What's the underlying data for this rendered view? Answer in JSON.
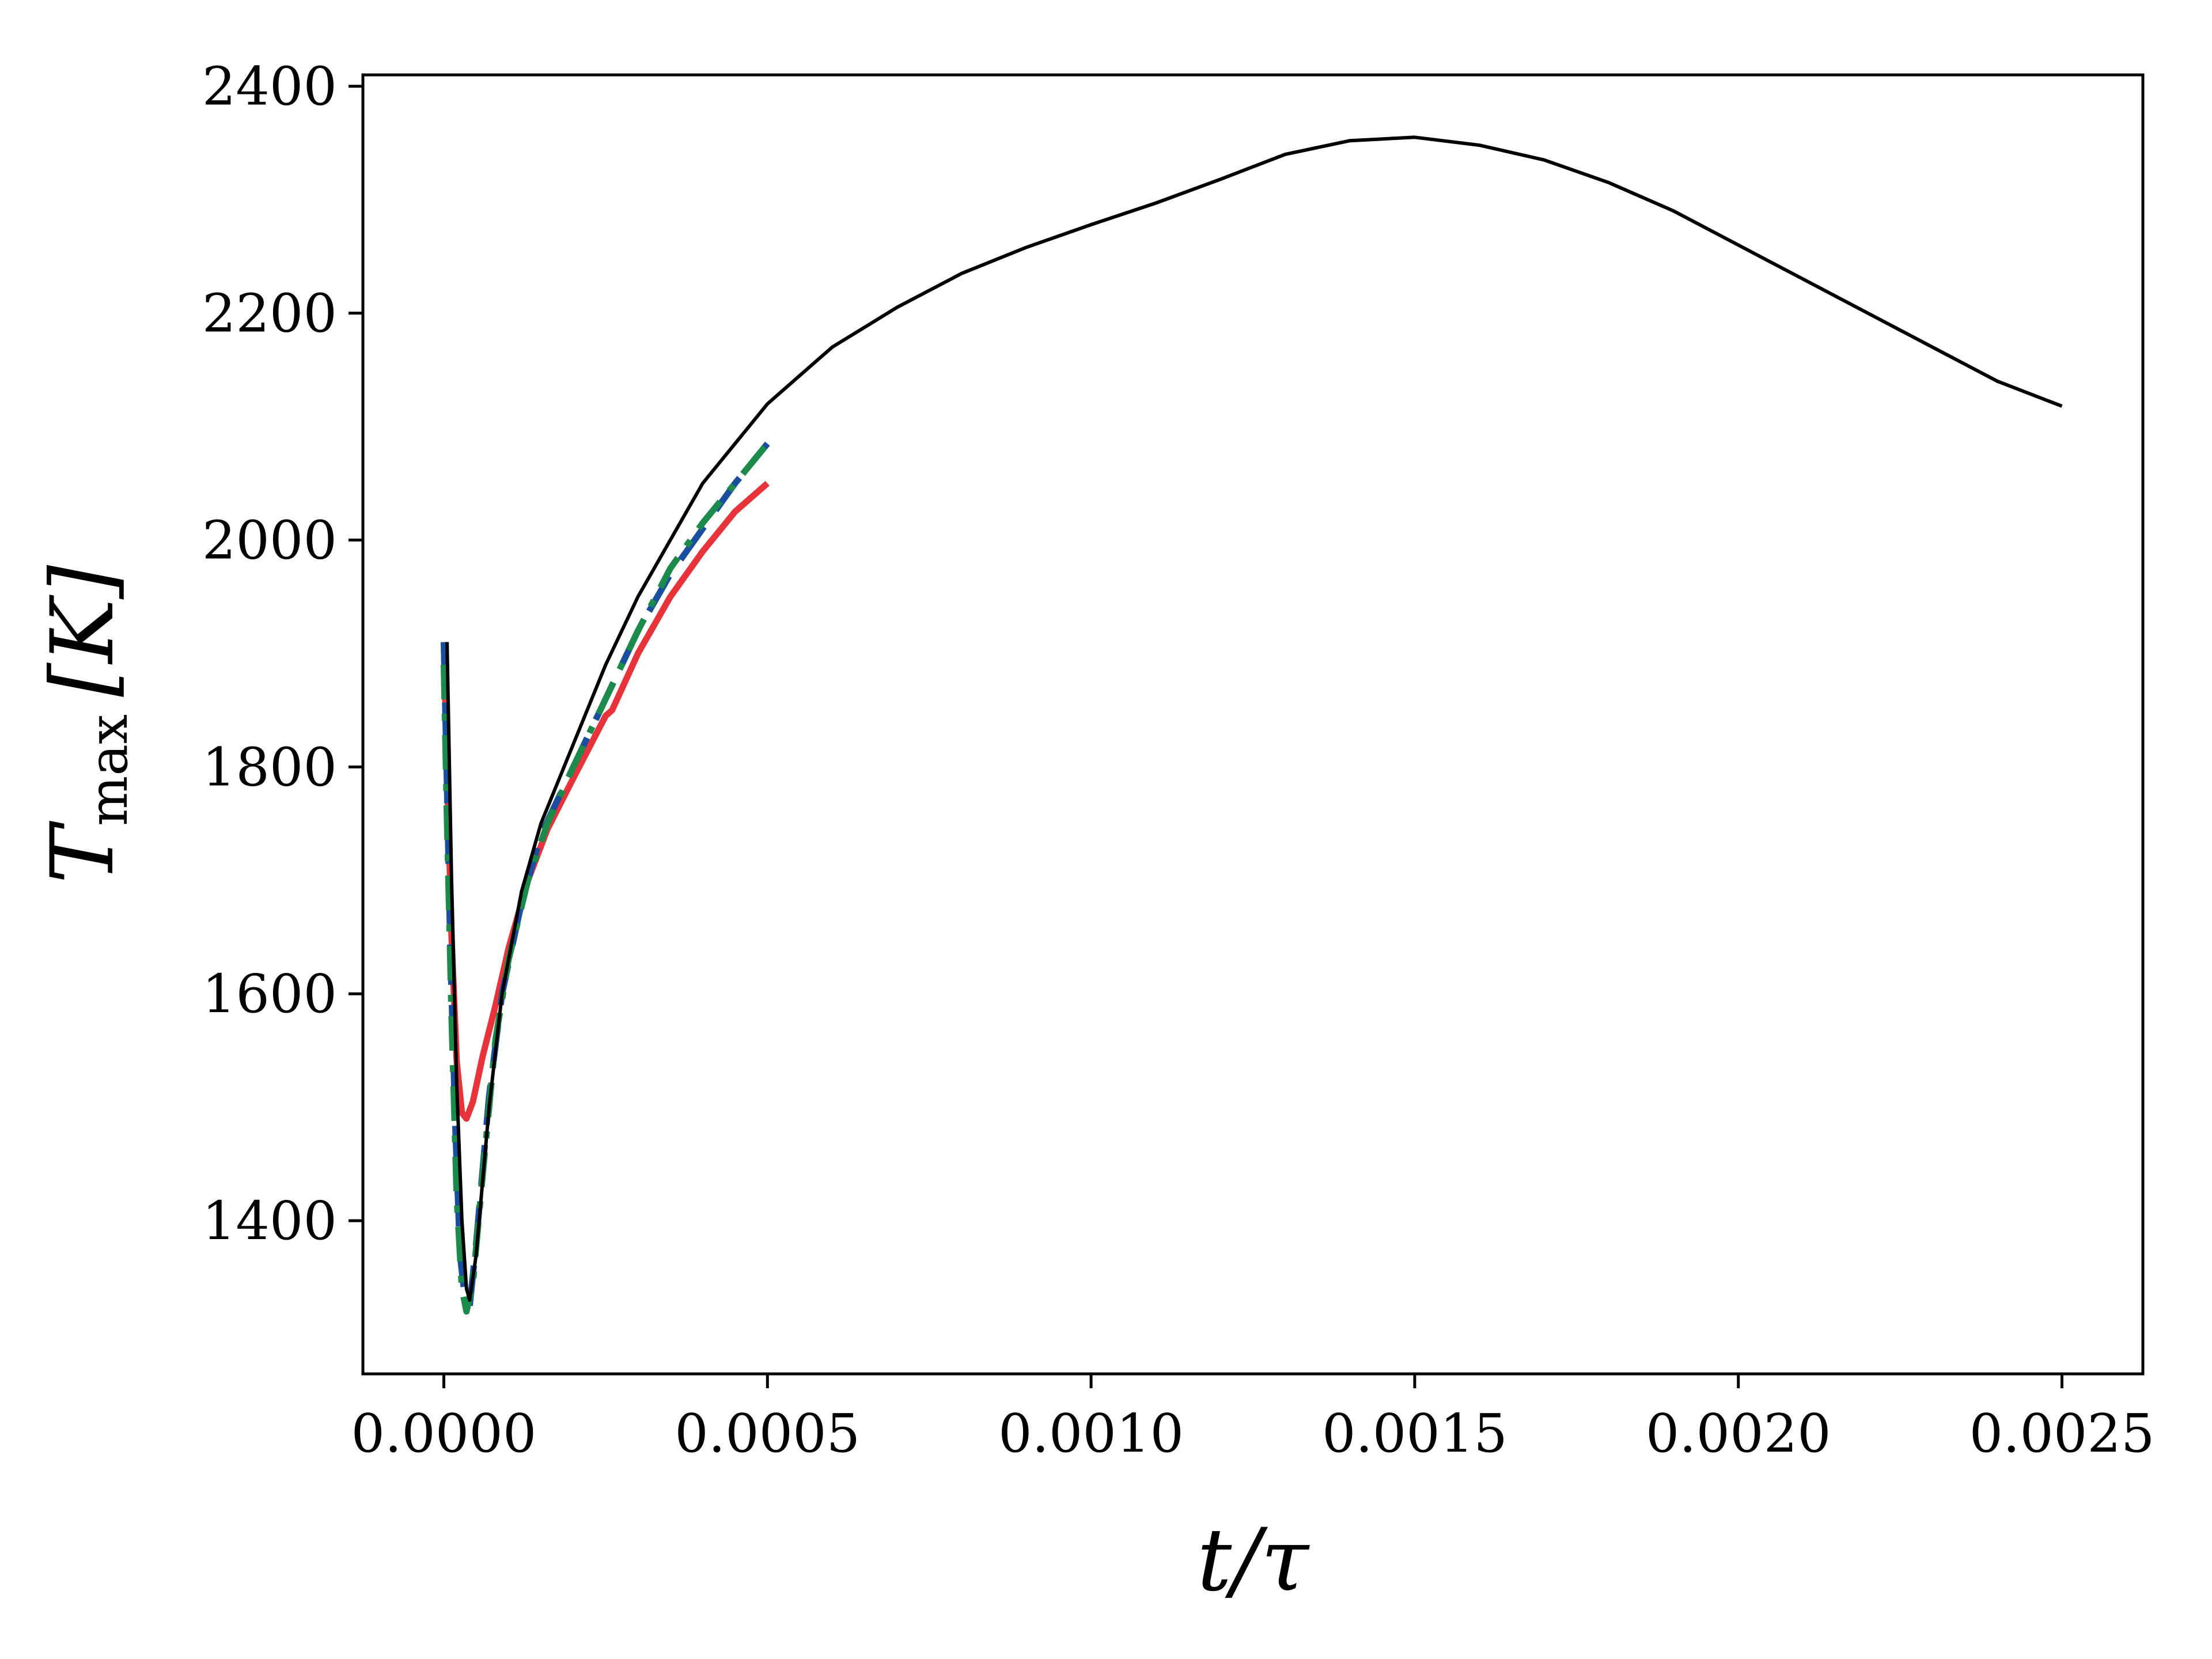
{
  "chart_data": {
    "type": "line",
    "xlabel": "t/τ",
    "ylabel": {
      "main": "T",
      "sub": "max",
      "unit": "[K]"
    },
    "xlim": [
      -0.000125,
      0.002625
    ],
    "ylim": [
      1265,
      2410
    ],
    "x_ticks": [
      0.0,
      0.0005,
      0.001,
      0.0015,
      0.002,
      0.0025
    ],
    "x_tick_labels": [
      "0.0000",
      "0.0005",
      "0.0010",
      "0.0015",
      "0.0020",
      "0.0025"
    ],
    "y_ticks": [
      1400,
      1600,
      1800,
      2000,
      2200,
      2400
    ],
    "y_tick_labels": [
      "1400",
      "1600",
      "1800",
      "2000",
      "2200",
      "2400"
    ],
    "grid": false,
    "series": [
      {
        "color": "#e8333a",
        "style": "solid",
        "points": [
          [
            0.0,
            1910
          ],
          [
            5e-06,
            1800
          ],
          [
            1.2e-05,
            1650
          ],
          [
            2e-05,
            1540
          ],
          [
            2.8e-05,
            1495
          ],
          [
            3.5e-05,
            1490
          ],
          [
            4.5e-05,
            1505
          ],
          [
            6e-05,
            1545
          ],
          [
            8e-05,
            1590
          ],
          [
            0.0001,
            1640
          ],
          [
            0.00013,
            1700
          ],
          [
            0.00016,
            1745
          ],
          [
            0.0002,
            1790
          ],
          [
            0.00025,
            1845
          ],
          [
            0.00026,
            1850
          ],
          [
            0.0003,
            1900
          ],
          [
            0.00035,
            1950
          ],
          [
            0.0004,
            1990
          ],
          [
            0.00045,
            2025
          ],
          [
            0.0005,
            2050
          ]
        ]
      },
      {
        "color": "#1a4fa0",
        "style": "dashed",
        "points": [
          [
            0.0,
            1910
          ],
          [
            5e-06,
            1780
          ],
          [
            1e-05,
            1640
          ],
          [
            1.8e-05,
            1480
          ],
          [
            2.5e-05,
            1370
          ],
          [
            3.2e-05,
            1335
          ],
          [
            4e-05,
            1325
          ],
          [
            5e-05,
            1380
          ],
          [
            7e-05,
            1510
          ],
          [
            9e-05,
            1600
          ],
          [
            0.00012,
            1680
          ],
          [
            0.00015,
            1740
          ],
          [
            0.0002,
            1800
          ],
          [
            0.00025,
            1860
          ],
          [
            0.0003,
            1920
          ],
          [
            0.00035,
            1970
          ],
          [
            0.0004,
            2010
          ],
          [
            0.00045,
            2050
          ],
          [
            0.0005,
            2085
          ]
        ]
      },
      {
        "color": "#1b8a4a",
        "style": "dashdot",
        "points": [
          [
            0.0,
            1890
          ],
          [
            5e-06,
            1750
          ],
          [
            1.2e-05,
            1580
          ],
          [
            2e-05,
            1420
          ],
          [
            2.8e-05,
            1340
          ],
          [
            3.5e-05,
            1320
          ],
          [
            4.5e-05,
            1345
          ],
          [
            6e-05,
            1440
          ],
          [
            8e-05,
            1560
          ],
          [
            0.0001,
            1630
          ],
          [
            0.00013,
            1700
          ],
          [
            0.00016,
            1750
          ],
          [
            0.0002,
            1800
          ],
          [
            0.00025,
            1860
          ],
          [
            0.0003,
            1920
          ],
          [
            0.00035,
            1975
          ],
          [
            0.0004,
            2015
          ],
          [
            0.00045,
            2050
          ],
          [
            0.0005,
            2085
          ]
        ]
      },
      {
        "color": "#000000",
        "style": "solid",
        "points": [
          [
            5e-06,
            1910
          ],
          [
            1.2e-05,
            1700
          ],
          [
            2e-05,
            1520
          ],
          [
            2.8e-05,
            1400
          ],
          [
            3.5e-05,
            1340
          ],
          [
            4e-05,
            1330
          ],
          [
            5e-05,
            1370
          ],
          [
            7e-05,
            1500
          ],
          [
            9e-05,
            1600
          ],
          [
            0.00012,
            1690
          ],
          [
            0.00015,
            1750
          ],
          [
            0.0002,
            1820
          ],
          [
            0.00025,
            1890
          ],
          [
            0.0003,
            1950
          ],
          [
            0.0004,
            2050
          ],
          [
            0.0005,
            2120
          ],
          [
            0.0006,
            2170
          ],
          [
            0.0007,
            2205
          ],
          [
            0.0008,
            2235
          ],
          [
            0.0009,
            2258
          ],
          [
            0.001,
            2278
          ],
          [
            0.0011,
            2297
          ],
          [
            0.0012,
            2318
          ],
          [
            0.0013,
            2340
          ],
          [
            0.0014,
            2352
          ],
          [
            0.0015,
            2355
          ],
          [
            0.0016,
            2348
          ],
          [
            0.0017,
            2335
          ],
          [
            0.0018,
            2315
          ],
          [
            0.0019,
            2290
          ],
          [
            0.002,
            2260
          ],
          [
            0.0021,
            2230
          ],
          [
            0.0022,
            2200
          ],
          [
            0.0023,
            2170
          ],
          [
            0.0024,
            2140
          ],
          [
            0.0025,
            2118
          ]
        ]
      }
    ]
  }
}
